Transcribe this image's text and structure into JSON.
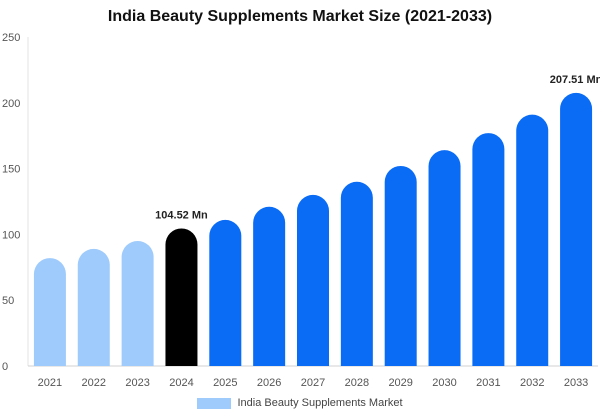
{
  "chart_data": {
    "type": "bar",
    "title": "India Beauty Supplements Market Size (2021-2033)",
    "categories": [
      "2021",
      "2022",
      "2023",
      "2024",
      "2025",
      "2026",
      "2027",
      "2028",
      "2029",
      "2030",
      "2031",
      "2032",
      "2033"
    ],
    "series": [
      {
        "name": "India Beauty Supplements Market",
        "values": [
          82,
          89,
          95,
          104.52,
          111,
          121,
          130,
          140,
          152,
          164,
          177,
          191,
          207.51
        ]
      }
    ],
    "data_labels": [
      "",
      "",
      "",
      "104.52 Mn",
      "",
      "",
      "",
      "",
      "",
      "",
      "",
      "",
      "207.51 Mn"
    ],
    "bar_colors": [
      "#9ecbfc",
      "#9ecbfc",
      "#9ecbfc",
      "#000000",
      "#0a6cf5",
      "#0a6cf5",
      "#0a6cf5",
      "#0a6cf5",
      "#0a6cf5",
      "#0a6cf5",
      "#0a6cf5",
      "#0a6cf5",
      "#0a6cf5"
    ],
    "legend_color": "#9ecbfc",
    "ylim": [
      0,
      250
    ],
    "yticks": [
      "0",
      "50",
      "100",
      "150",
      "200",
      "250"
    ],
    "xlabel": "",
    "ylabel": "",
    "grid": false,
    "legend_position": "bottom"
  }
}
